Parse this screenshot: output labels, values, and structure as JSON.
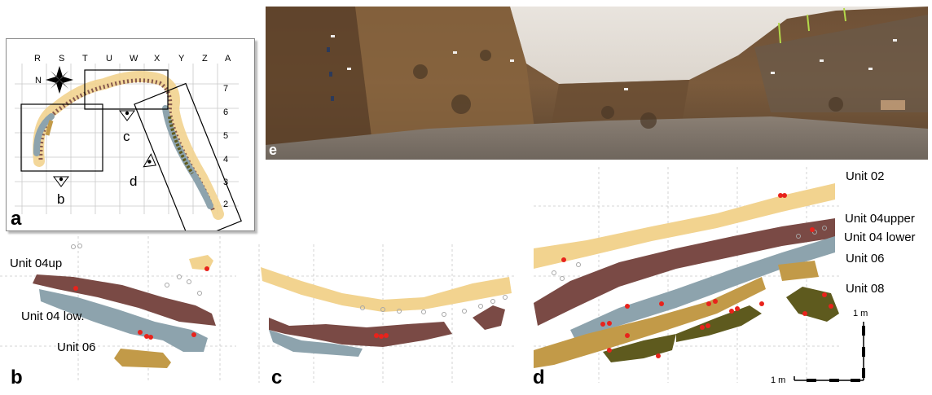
{
  "panels": {
    "a": "a",
    "b": "b",
    "c": "c",
    "d": "d",
    "e": "e"
  },
  "map": {
    "columns": [
      "R",
      "S",
      "T",
      "U",
      "W",
      "X",
      "Y",
      "Z",
      "A"
    ],
    "rows": [
      "7",
      "6",
      "5",
      "4",
      "3",
      "2"
    ],
    "view_labels": {
      "b": "b",
      "c": "c",
      "d": "d"
    },
    "compass_icon": "compass-rose-icon",
    "eye_icon": "eye-viewpoint-icon"
  },
  "units": {
    "b": {
      "u04up": "Unit 04up",
      "u04low": "Unit 04 low.",
      "u06": "Unit 06"
    },
    "d": {
      "u02": "Unit 02",
      "u04upper": "Unit 04upper",
      "u04lower": "Unit 04 lower",
      "u06": "Unit 06",
      "u08": "Unit 08"
    }
  },
  "scale": {
    "horizontal": "1 m",
    "vertical": "1 m"
  },
  "colors": {
    "unit02": "#f2d38f",
    "unit04upper": "#7a4a45",
    "unit04lower": "#8da3ad",
    "unit06": "#c29a48",
    "unit08": "#5e5a1e",
    "finds": "#e8231c",
    "open_points": "#a6a6a6"
  }
}
